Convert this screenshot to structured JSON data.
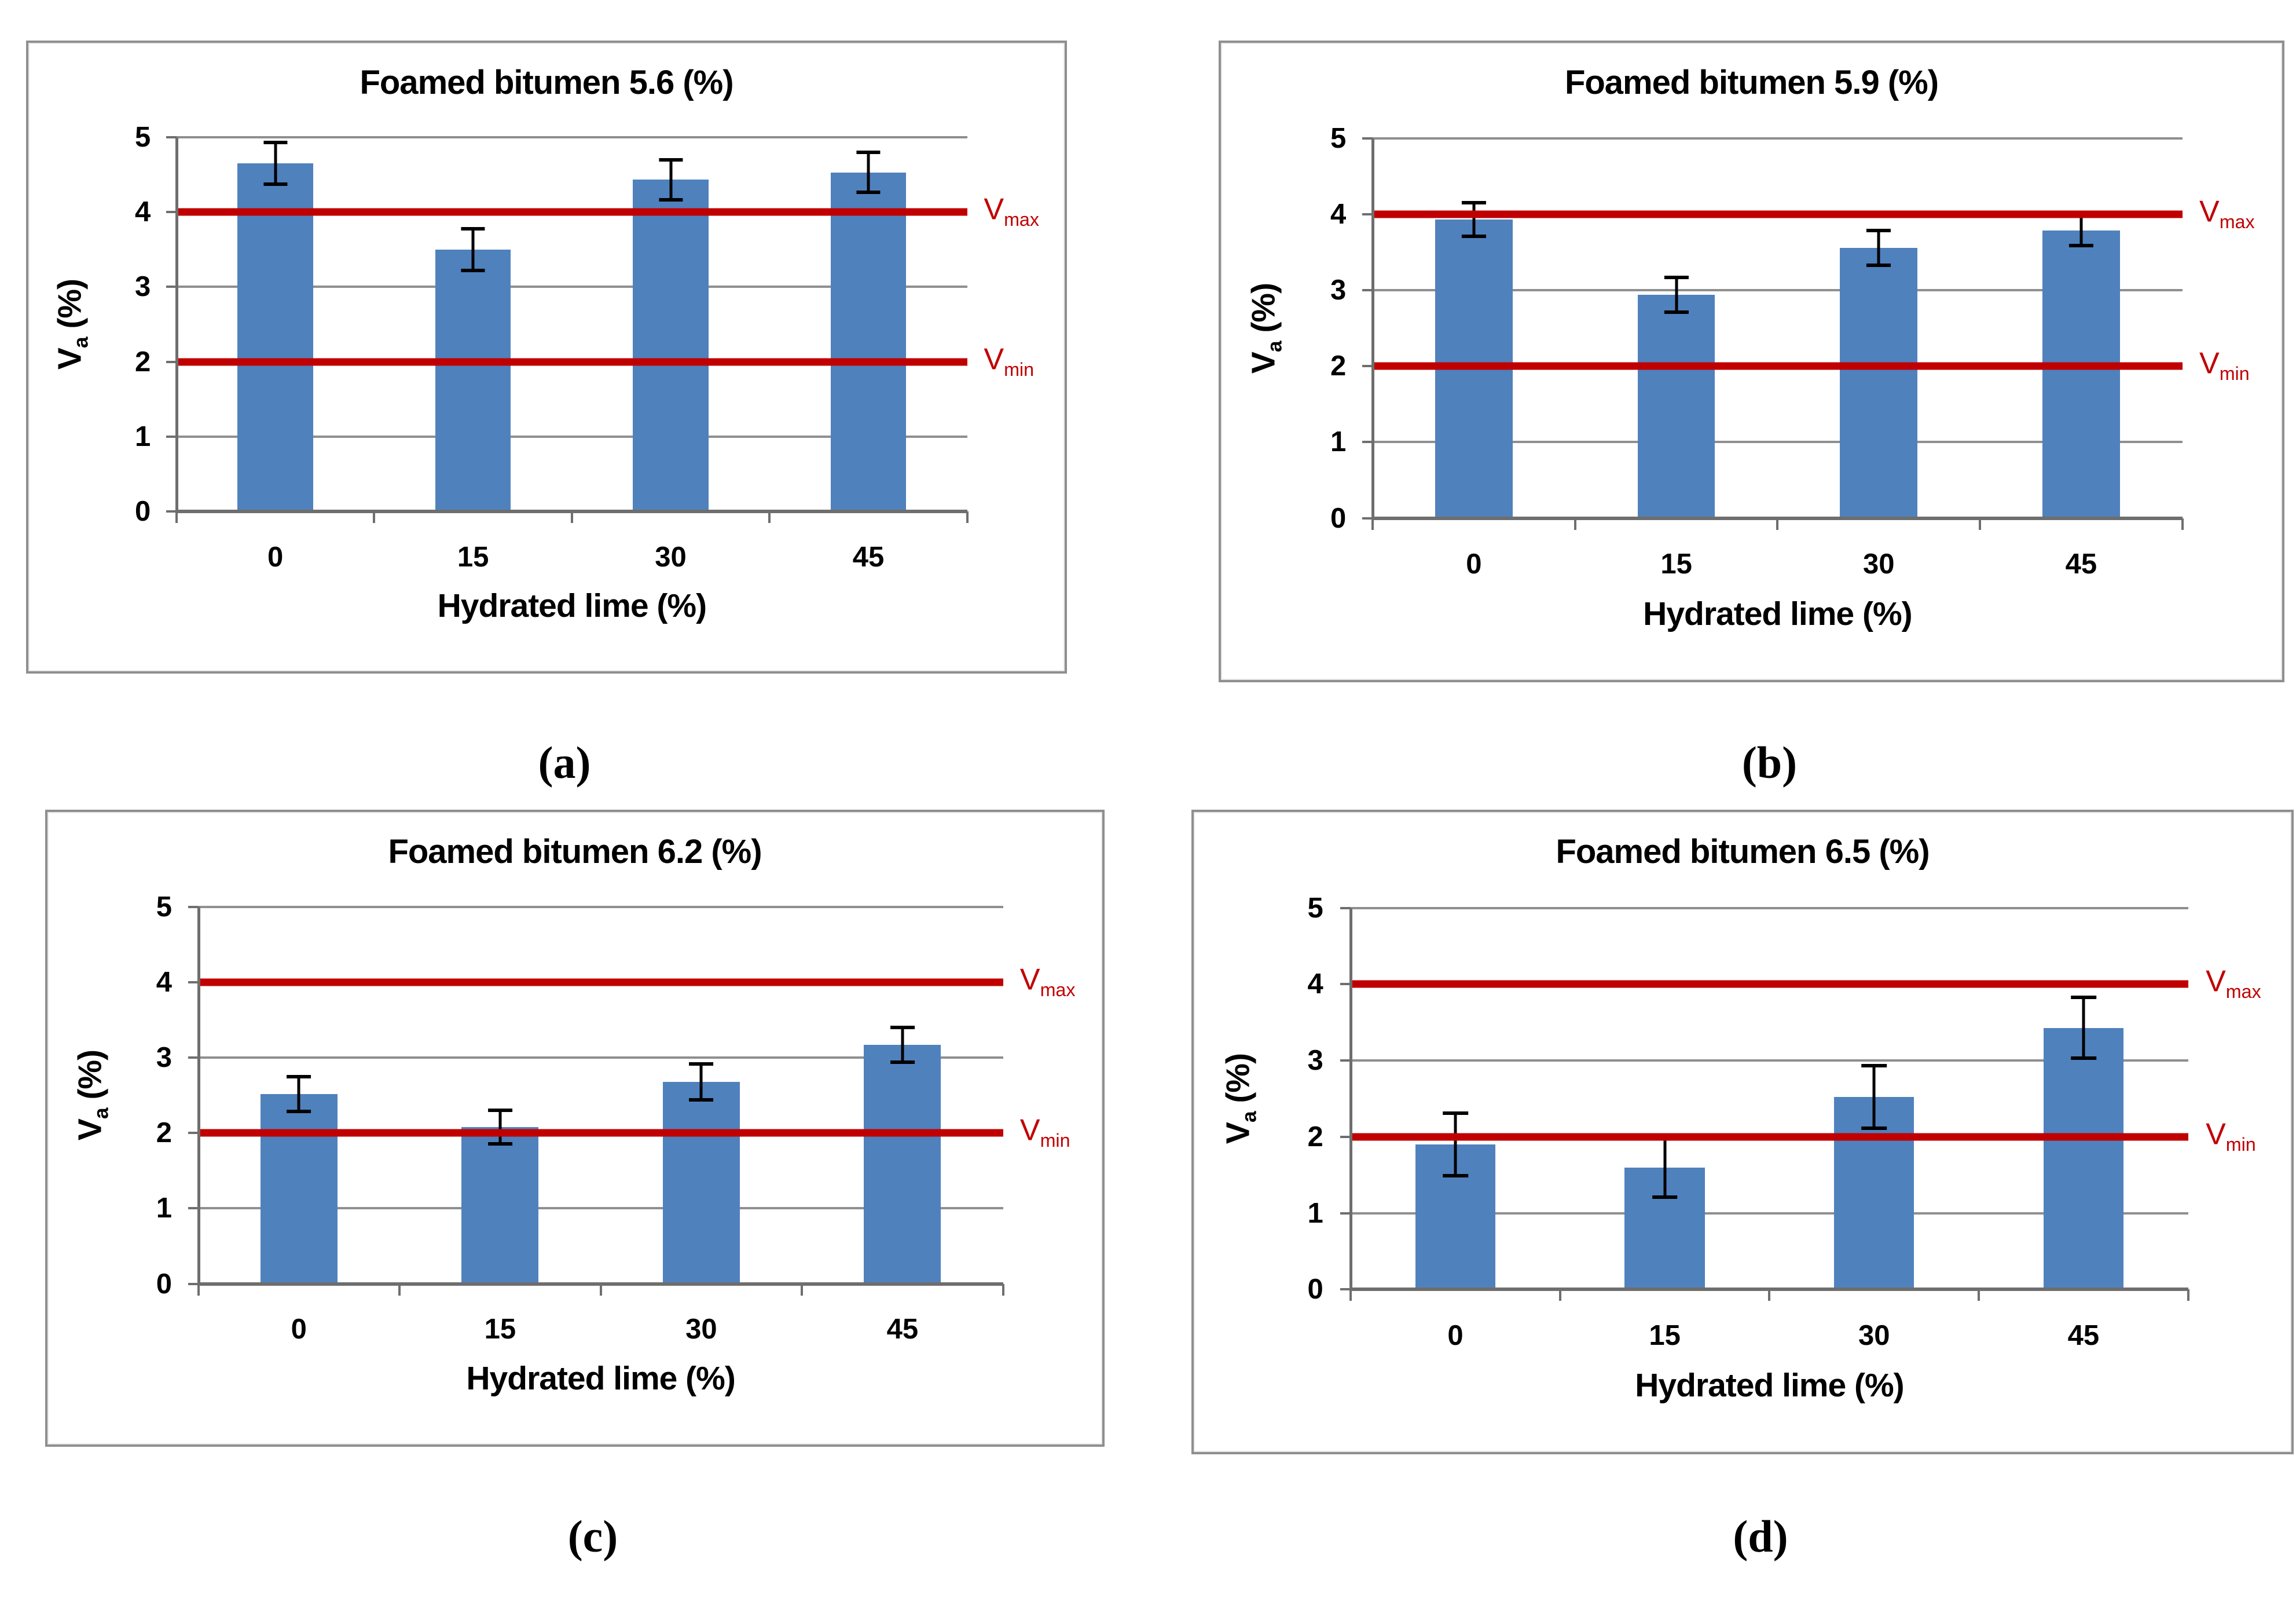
{
  "figure_caption_labels": [
    "(a)",
    "(b)",
    "(c)",
    "(d)"
  ],
  "colors": {
    "bar": "#4F81BD",
    "reference_line": "#C00000",
    "gridline": "#8f8f8f",
    "axis": "#6e6e6e",
    "panel_border": "#8f8f8f"
  },
  "chart_data": [
    {
      "type": "bar",
      "panel_label": "(a)",
      "title": "Foamed bitumen 5.6 (%)",
      "categories": [
        "0",
        "15",
        "30",
        "45"
      ],
      "values": [
        4.65,
        3.5,
        4.43,
        4.53
      ],
      "error_bars": [
        0.28,
        0.28,
        0.27,
        0.27
      ],
      "xlabel": "Hydrated lime (%)",
      "ylabel": {
        "base": "V",
        "sub": "a",
        "rest": " (%)"
      },
      "ylim": [
        0,
        5
      ],
      "yticks": [
        "0",
        "1",
        "2",
        "3",
        "4",
        "5"
      ],
      "grid": true,
      "ref_lines": [
        {
          "base": "V",
          "sub": "max",
          "value": 4
        },
        {
          "base": "V",
          "sub": "min",
          "value": 2
        }
      ]
    },
    {
      "type": "bar",
      "panel_label": "(b)",
      "title": "Foamed bitumen 5.9 (%)",
      "categories": [
        "0",
        "15",
        "30",
        "45"
      ],
      "values": [
        3.93,
        2.94,
        3.56,
        3.79
      ],
      "error_bars": [
        0.22,
        0.23,
        0.23,
        0.2
      ],
      "xlabel": "Hydrated lime (%)",
      "ylabel": {
        "base": "V",
        "sub": "a",
        "rest": " (%)"
      },
      "ylim": [
        0,
        5
      ],
      "yticks": [
        "0",
        "1",
        "2",
        "3",
        "4",
        "5"
      ],
      "grid": true,
      "ref_lines": [
        {
          "base": "V",
          "sub": "max",
          "value": 4
        },
        {
          "base": "V",
          "sub": "min",
          "value": 2
        }
      ]
    },
    {
      "type": "bar",
      "panel_label": "(c)",
      "title": "Foamed bitumen 6.2 (%)",
      "categories": [
        "0",
        "15",
        "30",
        "45"
      ],
      "values": [
        2.52,
        2.08,
        2.68,
        3.17
      ],
      "error_bars": [
        0.23,
        0.22,
        0.24,
        0.23
      ],
      "xlabel": "Hydrated lime (%)",
      "ylabel": {
        "base": "V",
        "sub": "a",
        "rest": " (%)"
      },
      "ylim": [
        0,
        5
      ],
      "yticks": [
        "0",
        "1",
        "2",
        "3",
        "4",
        "5"
      ],
      "grid": true,
      "ref_lines": [
        {
          "base": "V",
          "sub": "max",
          "value": 4
        },
        {
          "base": "V",
          "sub": "min",
          "value": 2
        }
      ]
    },
    {
      "type": "bar",
      "panel_label": "(d)",
      "title": "Foamed bitumen 6.5 (%)",
      "categories": [
        "0",
        "15",
        "30",
        "45"
      ],
      "values": [
        1.9,
        1.6,
        2.52,
        3.43
      ],
      "error_bars": [
        0.41,
        0.39,
        0.41,
        0.4
      ],
      "xlabel": "Hydrated lime (%)",
      "ylabel": {
        "base": "V",
        "sub": "a",
        "rest": " (%)"
      },
      "ylim": [
        0,
        5
      ],
      "yticks": [
        "0",
        "1",
        "2",
        "3",
        "4",
        "5"
      ],
      "grid": true,
      "ref_lines": [
        {
          "base": "V",
          "sub": "max",
          "value": 4
        },
        {
          "base": "V",
          "sub": "min",
          "value": 2
        }
      ]
    }
  ]
}
